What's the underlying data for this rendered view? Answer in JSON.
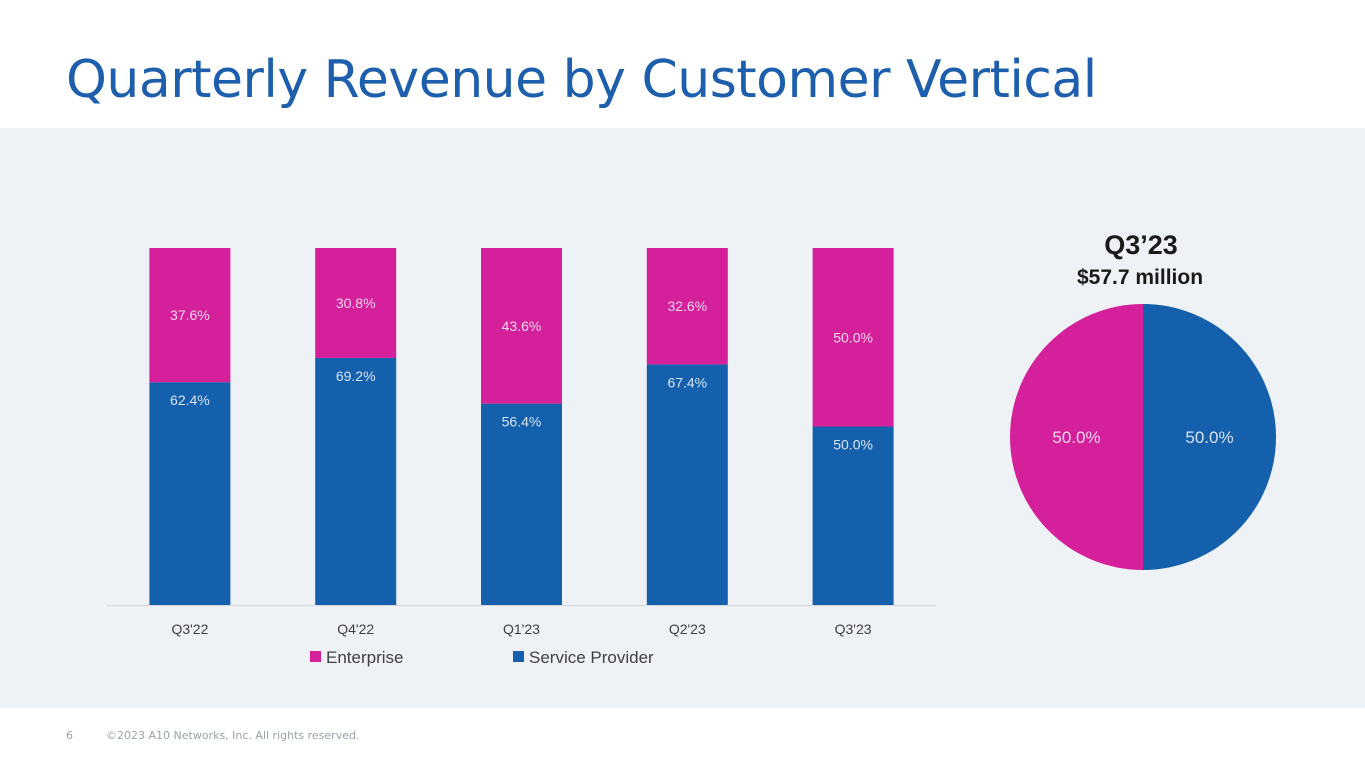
{
  "slide": {
    "title": "Quarterly Revenue by Customer Vertical",
    "page_number": "6",
    "copyright": "©2023 A10 Networks, Inc. All rights reserved."
  },
  "colors": {
    "title": "#1d5fad",
    "service_provider": "#1560ac",
    "enterprise": "#d4219b",
    "panel_bg": "#eef1f6"
  },
  "chart_data": [
    {
      "type": "bar",
      "stacked": true,
      "categories": [
        "Q3'22",
        "Q4'22",
        "Q1'23",
        "Q2'23",
        "Q3'23"
      ],
      "series": [
        {
          "name": "Service Provider",
          "color": "#1560ac",
          "values": [
            62.4,
            69.2,
            56.4,
            67.4,
            50.0
          ],
          "labels": [
            "62.4%",
            "69.2%",
            "56.4%",
            "67.4%",
            "50.0%"
          ]
        },
        {
          "name": "Enterprise",
          "color": "#d4219b",
          "values": [
            37.6,
            30.8,
            43.6,
            32.6,
            50.0
          ],
          "labels": [
            "37.6%",
            "30.8%",
            "43.6%",
            "32.6%",
            "50.0%"
          ]
        }
      ],
      "legend": [
        "Enterprise",
        "Service Provider"
      ],
      "legend_position": "bottom",
      "ylim": [
        0,
        100
      ],
      "grid": false
    },
    {
      "type": "pie",
      "title": "Q3’23",
      "subtitle": "$57.7 million",
      "slices": [
        {
          "name": "Service Provider",
          "value": 50.0,
          "label": "50.0%",
          "color": "#1560ac"
        },
        {
          "name": "Enterprise",
          "value": 50.0,
          "label": "50.0%",
          "color": "#d4219b"
        }
      ]
    }
  ]
}
